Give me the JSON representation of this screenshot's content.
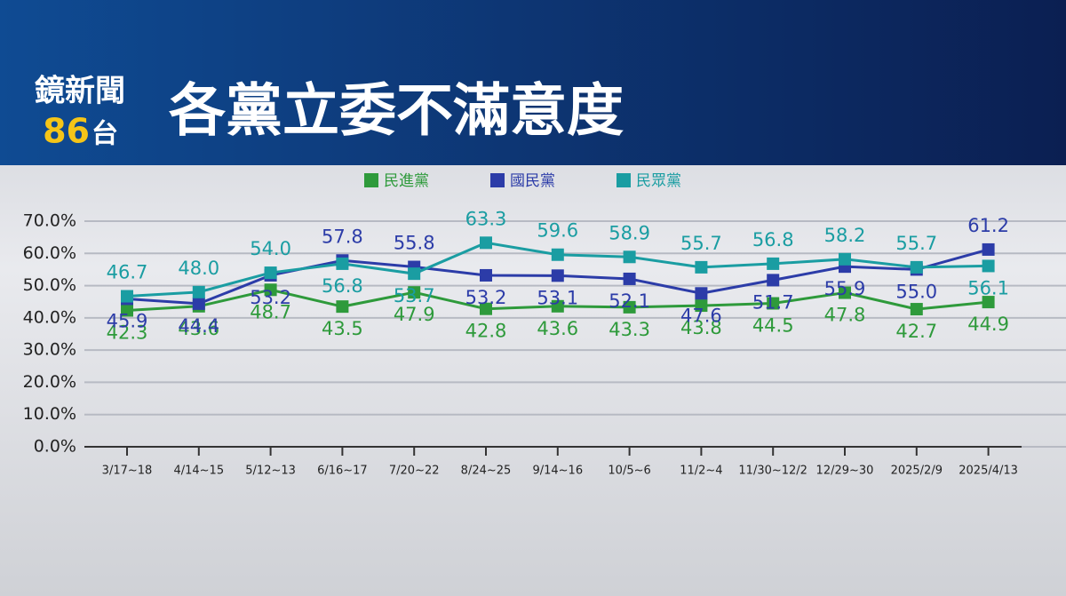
{
  "header": {
    "logo_name": "鏡新聞",
    "logo_channel": "86",
    "logo_suffix": "台"
  },
  "chart_data": {
    "type": "line",
    "title": "各黨立委不滿意度",
    "categories": [
      "3/17~18",
      "4/14~15",
      "5/12~13",
      "6/16~17",
      "7/20~22",
      "8/24~25",
      "9/14~16",
      "10/5~6",
      "11/2~4",
      "11/30~12/2",
      "12/29~30",
      "2025/2/9",
      "2025/4/13"
    ],
    "series": [
      {
        "name": "民進黨",
        "color": "#2e9a3b",
        "values": [
          42.3,
          43.6,
          48.7,
          43.5,
          47.9,
          42.8,
          43.6,
          43.3,
          43.8,
          44.5,
          47.8,
          42.7,
          44.9
        ],
        "value_labels": [
          "42.3",
          "43.6",
          "48.7",
          "43.5",
          "47.9",
          "42.8",
          "43.6",
          "43.3",
          "43.8",
          "44.5",
          "47.8",
          "42.7",
          "44.9"
        ]
      },
      {
        "name": "國民黨",
        "color": "#2c3ca8",
        "values": [
          45.9,
          44.4,
          53.2,
          57.8,
          55.8,
          53.2,
          53.1,
          52.1,
          47.6,
          51.7,
          55.9,
          55.0,
          61.2
        ],
        "value_labels": [
          "45.9",
          "44.4",
          "53.2",
          "57.8",
          "55.8",
          "53.2",
          "53.1",
          "52.1",
          "47.6",
          "51.7",
          "55.9",
          "55.0",
          "61.2"
        ]
      },
      {
        "name": "民眾黨",
        "color": "#1a9da2",
        "values": [
          46.7,
          48.0,
          54.0,
          56.8,
          53.7,
          63.3,
          59.6,
          58.9,
          55.7,
          56.8,
          58.2,
          55.7,
          56.1
        ],
        "value_labels": [
          "46.7",
          "48.0",
          "54.0",
          "56.8",
          "53.7",
          "63.3",
          "59.6",
          "58.9",
          "55.7",
          "56.8",
          "58.2",
          "55.7",
          "56.1"
        ]
      }
    ],
    "ylim": [
      0,
      70
    ],
    "yticks": [
      {
        "value": 0,
        "label": "0.0%"
      },
      {
        "value": 10,
        "label": "10.0%"
      },
      {
        "value": 20,
        "label": "20.0%"
      },
      {
        "value": 30,
        "label": "30.0%"
      },
      {
        "value": 40,
        "label": "40.0%"
      },
      {
        "value": 50,
        "label": "50.0%"
      },
      {
        "value": 60,
        "label": "60.0%"
      },
      {
        "value": 70,
        "label": "70.0%"
      }
    ],
    "grid": true
  }
}
